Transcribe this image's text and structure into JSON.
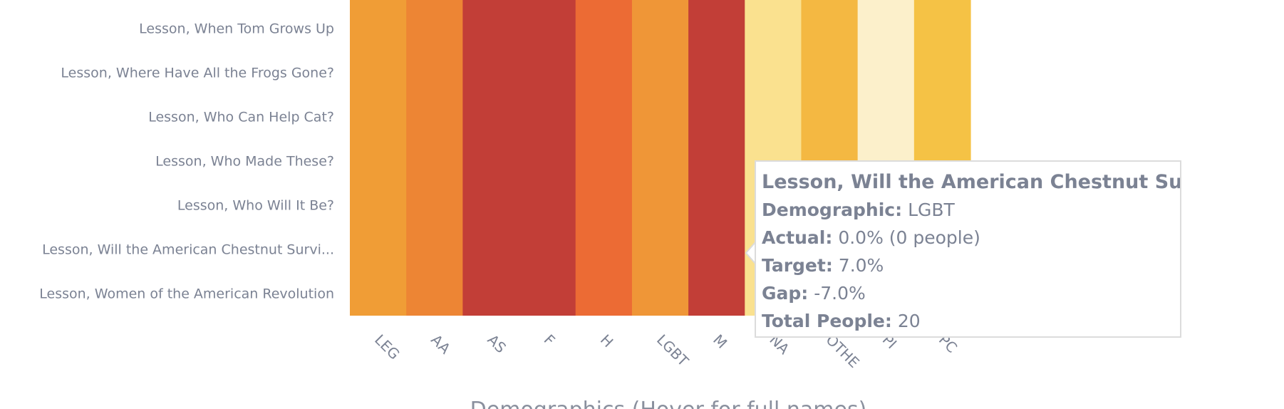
{
  "chart_data": {
    "type": "heatmap",
    "xlabel": "Demographics (Hover for full names)",
    "columns": [
      "LEG",
      "AA",
      "AS",
      "F",
      "H",
      "LGBT",
      "M",
      "NA",
      "OTHE",
      "PI",
      "PC"
    ],
    "column_colors": [
      "#f09d36",
      "#ed8534",
      "#c23e37",
      "#c23e37",
      "#ec6b34",
      "#ef9637",
      "#c23e37",
      "#fae18f",
      "#f4b842",
      "#fcf0cb",
      "#f5c245"
    ],
    "rows": [
      "Lesson, When Tom Grows Up",
      "Lesson, Where Have All the Frogs Gone?",
      "Lesson, Who Can Help Cat?",
      "Lesson, Who Made These?",
      "Lesson, Who Will It Be?",
      "Lesson, Will the American Chestnut Survi...",
      "Lesson, Women of the American Revolution"
    ],
    "tooltip": {
      "title": "Lesson, Will the American Chestnut Survive?",
      "lines": [
        {
          "label": "Demographic:",
          "value": "LGBT"
        },
        {
          "label": "Actual:",
          "value": "0.0% (0 people)"
        },
        {
          "label": "Target:",
          "value": "7.0%"
        },
        {
          "label": "Gap:",
          "value": "-7.0%"
        },
        {
          "label": "Total People:",
          "value": "20"
        }
      ]
    }
  }
}
